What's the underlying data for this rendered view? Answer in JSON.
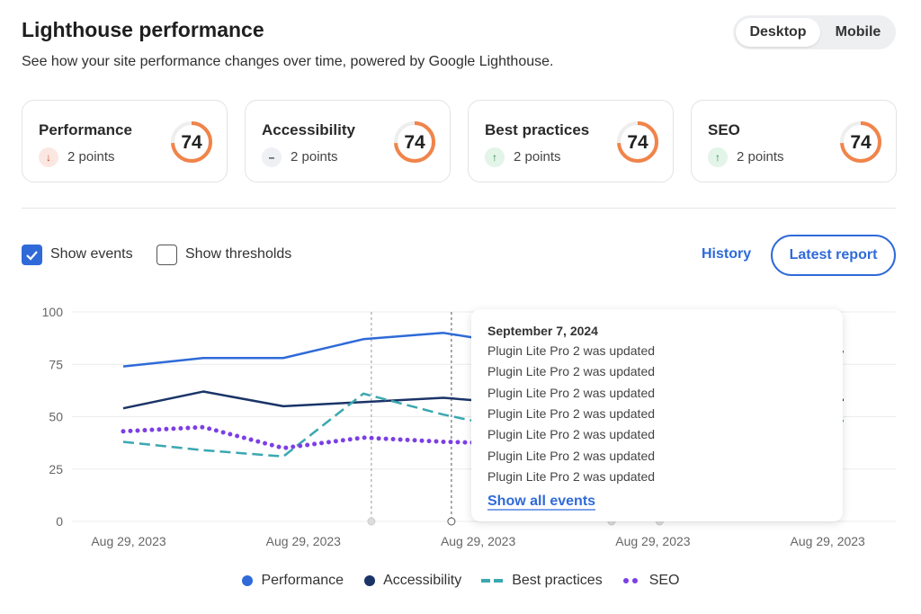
{
  "header": {
    "title": "Lighthouse performance",
    "subtitle": "See how your site performance changes over time, powered by Google Lighthouse."
  },
  "device_toggle": {
    "options": [
      "Desktop",
      "Mobile"
    ],
    "selected": "Desktop"
  },
  "cards": [
    {
      "label": "Performance",
      "change": "2 points",
      "trend": "down",
      "icon": "arrow-down-icon",
      "score": "74",
      "score_value": 74
    },
    {
      "label": "Accessibility",
      "change": "2 points",
      "trend": "neutral",
      "icon": "dash-icon",
      "score": "74",
      "score_value": 74
    },
    {
      "label": "Best practices",
      "change": "2 points",
      "trend": "up",
      "icon": "arrow-up-icon",
      "score": "74",
      "score_value": 74
    },
    {
      "label": "SEO",
      "change": "2 points",
      "trend": "up",
      "icon": "arrow-up-icon",
      "score": "74",
      "score_value": 74
    }
  ],
  "controls": {
    "show_events": "Show events",
    "show_events_checked": true,
    "show_thresholds": "Show thresholds",
    "show_thresholds_checked": false,
    "history": "History",
    "latest_report": "Latest report"
  },
  "tooltip": {
    "date": "September 7, 2024",
    "events": [
      "Plugin Lite Pro 2 was updated",
      "Plugin Lite Pro 2 was updated",
      "Plugin Lite Pro 2 was updated",
      "Plugin Lite Pro 2 was updated",
      "Plugin Lite Pro 2 was updated",
      "Plugin Lite Pro 2 was updated",
      "Plugin Lite Pro 2 was updated"
    ],
    "link": "Show all events"
  },
  "colors": {
    "accent": "#2f6ad8",
    "gauge": "#f0844a",
    "performance": "#2f6ad8",
    "accessibility": "#1a3468",
    "best_practices": "#3aa8b0",
    "seo": "#7b3fe4"
  },
  "chart_data": {
    "type": "line",
    "ylim": [
      0,
      100
    ],
    "yticks": [
      "0",
      "25",
      "50",
      "75",
      "100"
    ],
    "xtick_labels": [
      "Aug 29, 2023",
      "Aug 29, 2023",
      "Aug 29, 2023",
      "Aug 29, 2023",
      "Aug 29, 2023"
    ],
    "grid": true,
    "legend": "bottom",
    "series": [
      {
        "name": "Performance",
        "style": "solid",
        "color": "#2f6ad8",
        "values": [
          74,
          78,
          78,
          87,
          90,
          84,
          83,
          82,
          82,
          81
        ]
      },
      {
        "name": "Accessibility",
        "style": "solid",
        "color": "#1a3468",
        "values": [
          54,
          62,
          55,
          57,
          59,
          56,
          57,
          58,
          58,
          58
        ]
      },
      {
        "name": "Best practices",
        "style": "dashed",
        "color": "#3aa8b0",
        "values": [
          38,
          34,
          31,
          61,
          51,
          43,
          45,
          46,
          47,
          48
        ]
      },
      {
        "name": "SEO",
        "style": "dotted",
        "color": "#7b3fe4",
        "values": [
          43,
          45,
          35,
          40,
          38,
          37,
          38,
          38,
          38,
          38
        ]
      }
    ],
    "event_indices": [
      3.1,
      4.1,
      6.1,
      6.7
    ]
  }
}
